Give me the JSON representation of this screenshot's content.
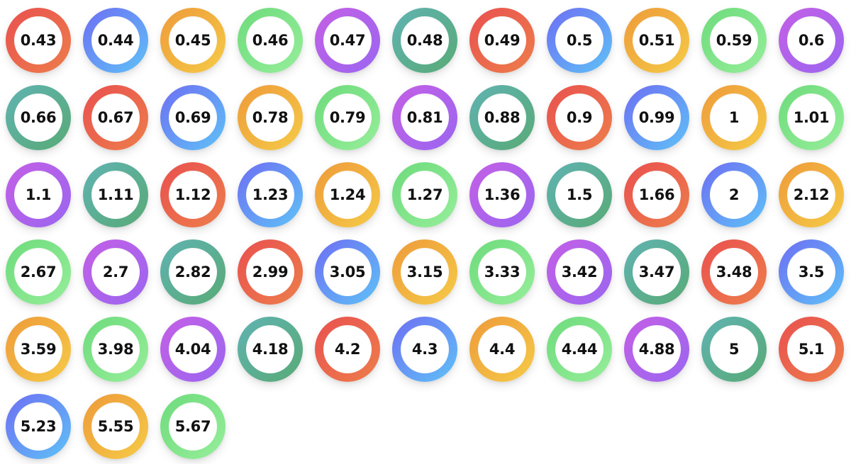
{
  "palette": [
    {
      "name": "red-orange",
      "from": "#e9504f",
      "to": "#ed7e4b"
    },
    {
      "name": "blue-cyan",
      "from": "#6e6ef3",
      "to": "#5ec2f7"
    },
    {
      "name": "orange-yellow",
      "from": "#ee9a3a",
      "to": "#f5cb47"
    },
    {
      "name": "green",
      "from": "#6edb7c",
      "to": "#96ee9a"
    },
    {
      "name": "purple-violet",
      "from": "#c45fe6",
      "to": "#9a66f0"
    },
    {
      "name": "teal-green",
      "from": "#5fb3b1",
      "to": "#59aa76"
    }
  ],
  "items": [
    "0.43",
    "0.44",
    "0.45",
    "0.46",
    "0.47",
    "0.48",
    "0.49",
    "0.5",
    "0.51",
    "0.59",
    "0.6",
    "0.66",
    "0.67",
    "0.69",
    "0.78",
    "0.79",
    "0.81",
    "0.88",
    "0.9",
    "0.99",
    "1",
    "1.01",
    "1.1",
    "1.11",
    "1.12",
    "1.23",
    "1.24",
    "1.27",
    "1.36",
    "1.5",
    "1.66",
    "2",
    "2.12",
    "2.67",
    "2.7",
    "2.82",
    "2.99",
    "3.05",
    "3.15",
    "3.33",
    "3.42",
    "3.47",
    "3.48",
    "3.5",
    "3.59",
    "3.98",
    "4.04",
    "4.18",
    "4.2",
    "4.3",
    "4.4",
    "4.44",
    "4.88",
    "5",
    "5.1",
    "5.23",
    "5.55",
    "5.67"
  ]
}
